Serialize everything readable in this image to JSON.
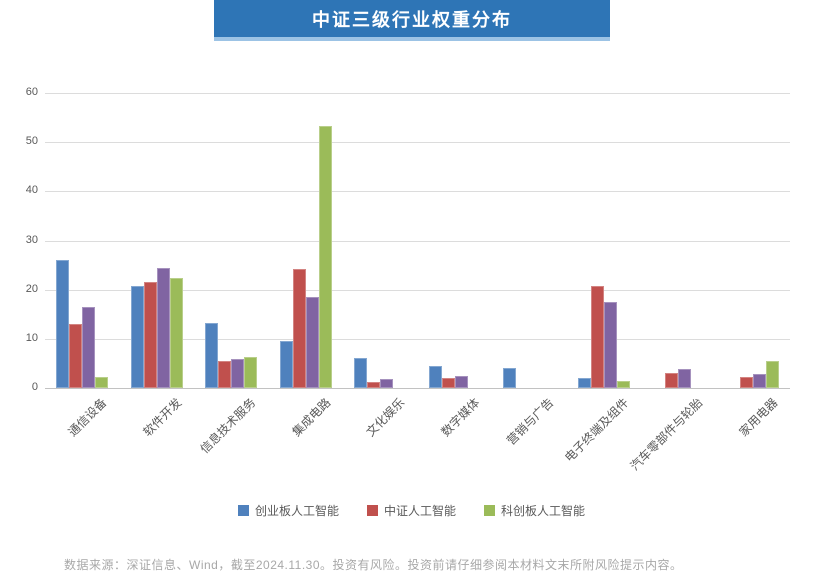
{
  "banner": {
    "title": "中证三级行业权重分布",
    "bg_color": "#2E75B6",
    "underline_color": "#9CC3E5",
    "text_color": "#FFFFFF"
  },
  "chart_data": {
    "type": "bar",
    "title": "中证三级行业权重分布",
    "categories": [
      "通信设备",
      "软件开发",
      "信息技术服务",
      "集成电路",
      "文化娱乐",
      "数字媒体",
      "营销与广告",
      "电子终端及组件",
      "汽车零部件与轮胎",
      "家用电器"
    ],
    "series": [
      {
        "name": "创业板人工智能",
        "color": "#4F81BD",
        "in_legend": true,
        "values": [
          26.0,
          20.7,
          13.3,
          9.6,
          6.2,
          4.5,
          4.1,
          2.1,
          0,
          0
        ]
      },
      {
        "name": "中证人工智能",
        "color": "#C0504D",
        "in_legend": true,
        "values": [
          13.1,
          21.5,
          5.6,
          24.3,
          1.2,
          2.0,
          0,
          20.7,
          3.0,
          2.2
        ]
      },
      {
        "name": "",
        "color": "#8064A2",
        "in_legend": false,
        "values": [
          16.5,
          24.5,
          5.9,
          18.5,
          1.8,
          2.4,
          0,
          17.4,
          3.9,
          2.8
        ]
      },
      {
        "name": "科创板人工智能",
        "color": "#9BBB59",
        "in_legend": true,
        "values": [
          2.3,
          22.4,
          6.3,
          53.2,
          0,
          0,
          0,
          1.4,
          0,
          5.6
        ]
      }
    ],
    "ylim": [
      0,
      60
    ],
    "yticks": [
      0,
      10,
      20,
      30,
      40,
      50,
      60
    ],
    "grid": true,
    "legend_position": "bottom",
    "xlabel": "",
    "ylabel": ""
  },
  "legend": {
    "items": [
      {
        "label": "创业板人工智能",
        "color": "#4F81BD"
      },
      {
        "label": "中证人工智能",
        "color": "#C0504D"
      },
      {
        "label": "科创板人工智能",
        "color": "#9BBB59"
      }
    ]
  },
  "footnote": {
    "text": "数据来源：深证信息、Wind，截至2024.11.30。投资有风险。投资前请仔细参阅本材料文末所附风险提示内容。",
    "color": "#A8A8A8"
  },
  "axis": {
    "tick_color": "#595959",
    "gridline_color": "#DCDCDC",
    "baseline_color": "#C2C2C2"
  }
}
